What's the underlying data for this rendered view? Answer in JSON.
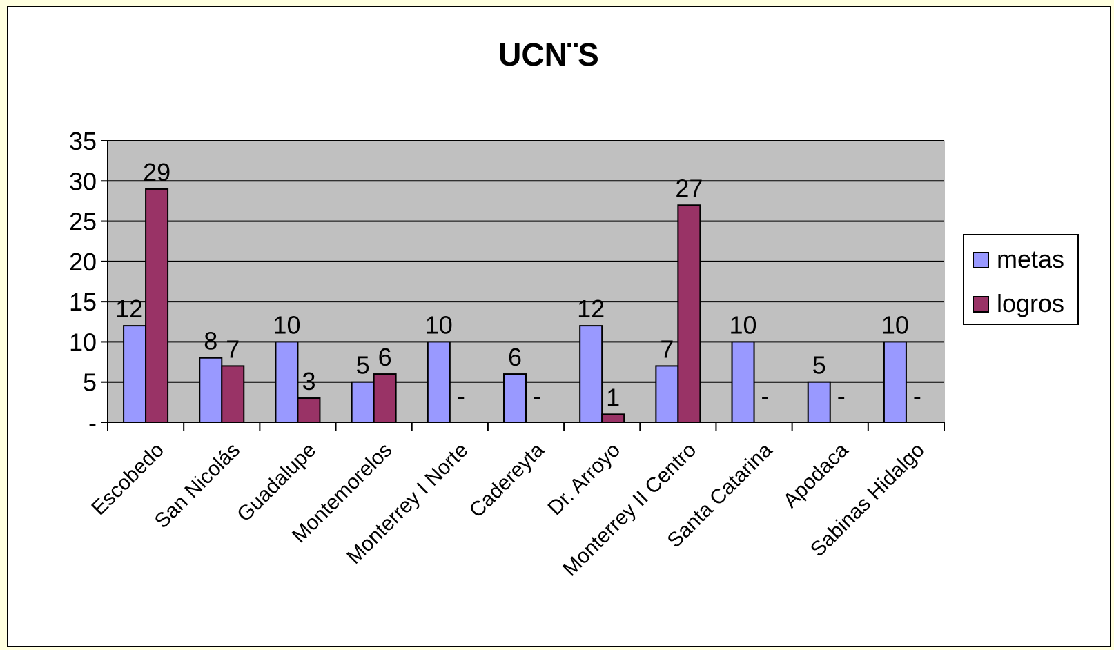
{
  "chart_data": {
    "type": "bar",
    "title": "UCN¨S",
    "xlabel": "",
    "ylabel": "",
    "ylim": [
      0,
      35
    ],
    "yticks": [
      {
        "value": 0,
        "label": "-"
      },
      {
        "value": 5,
        "label": "5"
      },
      {
        "value": 10,
        "label": "10"
      },
      {
        "value": 15,
        "label": "15"
      },
      {
        "value": 20,
        "label": "20"
      },
      {
        "value": 25,
        "label": "25"
      },
      {
        "value": 30,
        "label": "30"
      },
      {
        "value": 35,
        "label": "35"
      }
    ],
    "grid": true,
    "legend_position": "right",
    "plot_background": "#c0c0c0",
    "categories": [
      "Escobedo",
      "San Nicolás",
      "Guadalupe",
      "Montemorelos",
      "Monterrey I Norte",
      "Cadereyta",
      "Dr. Arroyo",
      "Monterrey II Centro",
      "Santa Catarina",
      "Apodaca",
      "Sabinas Hidalgo"
    ],
    "series": [
      {
        "name": "metas",
        "color": "#9999ff",
        "values": [
          12,
          8,
          10,
          5,
          10,
          6,
          12,
          7,
          10,
          5,
          10
        ],
        "labels": [
          "12",
          "8",
          "10",
          "5",
          "10",
          "6",
          "12",
          "7",
          "10",
          "5",
          "10"
        ]
      },
      {
        "name": "logros",
        "color": "#993366",
        "values": [
          29,
          7,
          3,
          6,
          0,
          null,
          1,
          27,
          0,
          0,
          0
        ],
        "labels": [
          "29",
          "7",
          "3",
          "6",
          "-",
          "-",
          "1",
          "27",
          "-",
          "-",
          "-"
        ]
      }
    ]
  }
}
